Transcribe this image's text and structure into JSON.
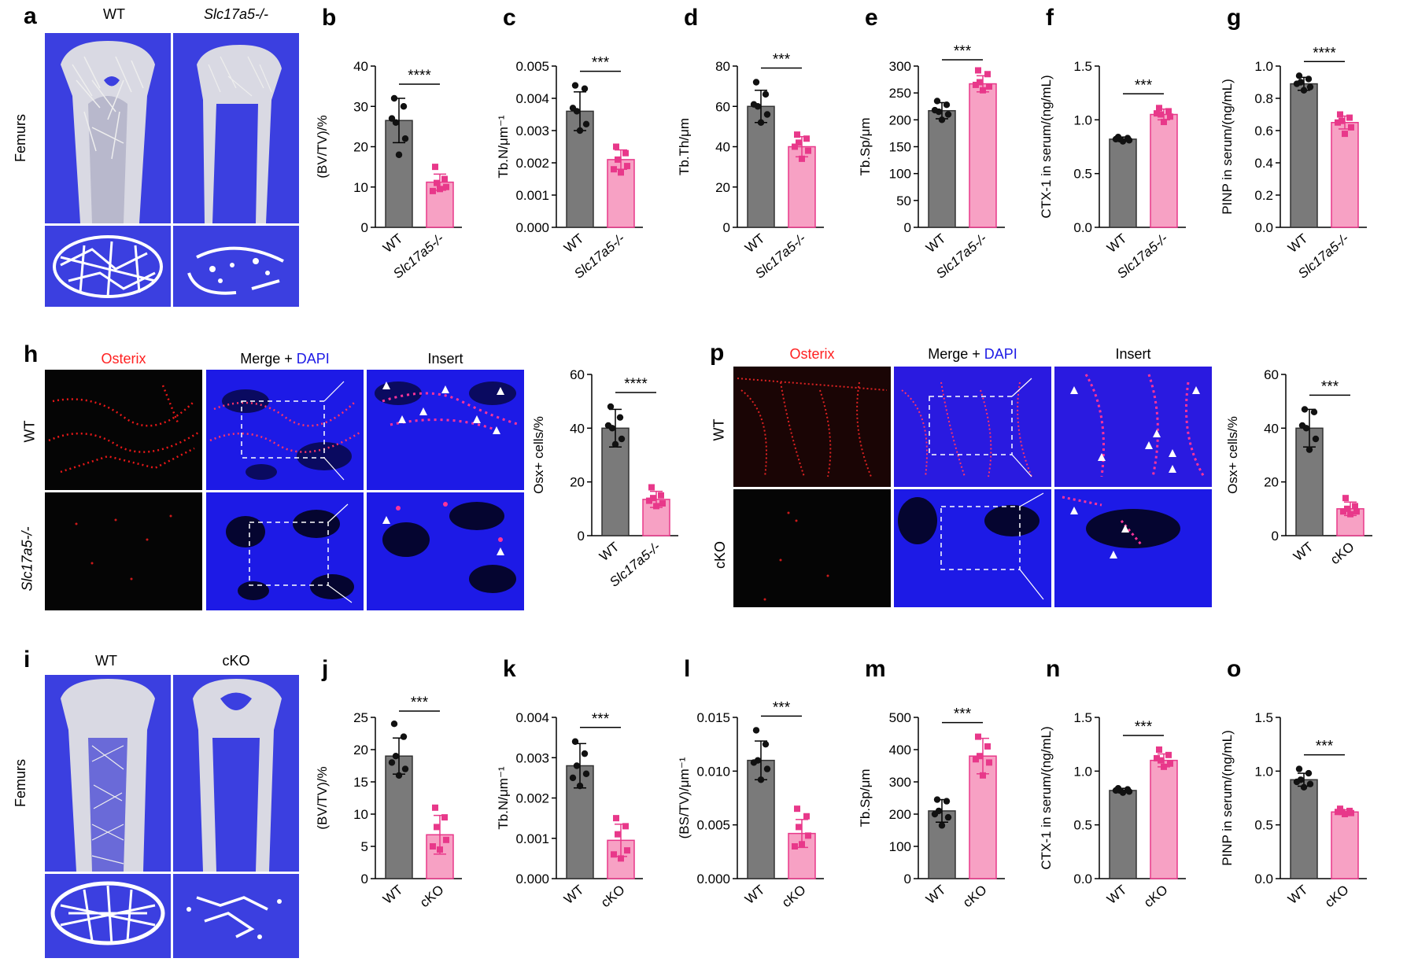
{
  "panels": {
    "a": {
      "letter": "a",
      "col_labels": [
        "WT",
        "Slc17a5-/-"
      ],
      "row_label": "Femurs"
    },
    "h": {
      "letter": "h",
      "col_labels": [
        "Osterix",
        "Merge + DAPI",
        "Insert"
      ],
      "row_labels": [
        "WT",
        "Slc17a5-/-"
      ],
      "merge_prefix": "Merge + ",
      "merge_dapi": "DAPI"
    },
    "p": {
      "letter": "p",
      "col_labels": [
        "Osterix",
        "Merge + DAPI",
        "Insert"
      ],
      "row_labels": [
        "WT",
        "cKO"
      ],
      "merge_prefix": "Merge + ",
      "merge_dapi": "DAPI"
    },
    "i": {
      "letter": "i",
      "col_labels": [
        "WT",
        "cKO"
      ],
      "row_label": "Femurs"
    }
  },
  "colors": {
    "wt_bar": "#7a7a7a",
    "ko_bar": "#f7a1c4",
    "ko_point": "#e8388a",
    "ct_background": "#3b3fe0",
    "dapi_blue": "#1d1ae6",
    "osterix_red": "#ff2020"
  },
  "chart_data": [
    {
      "id": "b",
      "letter": "b",
      "type": "bar",
      "categories": [
        "WT",
        "Slc17a5-/-"
      ],
      "ylabel": "(BV/TV)/%",
      "ylim": [
        0,
        40
      ],
      "yticks": [
        "0",
        "10",
        "20",
        "30",
        "40"
      ],
      "means": [
        26.5,
        11.2
      ],
      "sd": [
        5.5,
        2.0
      ],
      "points": [
        [
          32,
          30,
          26,
          22,
          18,
          27
        ],
        [
          15,
          12,
          11,
          10,
          9.5,
          9
        ]
      ],
      "sig": "****"
    },
    {
      "id": "c",
      "letter": "c",
      "type": "bar",
      "categories": [
        "WT",
        "Slc17a5-/-"
      ],
      "ylabel": "Tb.N/μm⁻¹",
      "ylim": [
        0,
        0.005
      ],
      "yticks": [
        "0.000",
        "0.001",
        "0.002",
        "0.003",
        "0.004",
        "0.005"
      ],
      "means": [
        0.0036,
        0.0021
      ],
      "sd": [
        0.0006,
        0.0003
      ],
      "points": [
        [
          0.0044,
          0.0043,
          0.0036,
          0.0032,
          0.003,
          0.0037
        ],
        [
          0.0025,
          0.0023,
          0.0021,
          0.0019,
          0.0017,
          0.0018
        ]
      ],
      "sig": "***"
    },
    {
      "id": "d",
      "letter": "d",
      "type": "bar",
      "categories": [
        "WT",
        "Slc17a5-/-"
      ],
      "ylabel": "Tb.Th/μm",
      "ylim": [
        0,
        80
      ],
      "yticks": [
        "0",
        "20",
        "40",
        "60",
        "80"
      ],
      "means": [
        60,
        40
      ],
      "sd": [
        8,
        5
      ],
      "points": [
        [
          72,
          66,
          60,
          56,
          52,
          61
        ],
        [
          46,
          44,
          42,
          38,
          34,
          40
        ]
      ],
      "sig": "***"
    },
    {
      "id": "e",
      "letter": "e",
      "type": "bar",
      "categories": [
        "WT",
        "Slc17a5-/-"
      ],
      "ylabel": "Tb.Sp/μm",
      "ylim": [
        0,
        300
      ],
      "yticks": [
        "0",
        "50",
        "100",
        "150",
        "200",
        "250",
        "300"
      ],
      "means": [
        217,
        267
      ],
      "sd": [
        15,
        15
      ],
      "points": [
        [
          235,
          228,
          215,
          210,
          200,
          218
        ],
        [
          292,
          285,
          270,
          262,
          255,
          265
        ]
      ],
      "sig": "***"
    },
    {
      "id": "f",
      "letter": "f",
      "type": "bar",
      "categories": [
        "WT",
        "Slc17a5-/-"
      ],
      "ylabel": "CTX-1 in serum/(ng/mL)",
      "ylim": [
        0,
        1.5
      ],
      "yticks": [
        "0.0",
        "0.5",
        "1.0",
        "1.5"
      ],
      "means": [
        0.82,
        1.05
      ],
      "sd": [
        0.02,
        0.05
      ],
      "points": [
        [
          0.84,
          0.83,
          0.82,
          0.81,
          0.8,
          0.82
        ],
        [
          1.11,
          1.08,
          1.05,
          1.03,
          0.98,
          1.06
        ]
      ],
      "sig": "***"
    },
    {
      "id": "g",
      "letter": "g",
      "type": "bar",
      "categories": [
        "WT",
        "Slc17a5-/-"
      ],
      "ylabel": "PINP in serum/(ng/mL)",
      "ylim": [
        0,
        1.0
      ],
      "yticks": [
        "0.0",
        "0.2",
        "0.4",
        "0.6",
        "0.8",
        "1.0"
      ],
      "means": [
        0.89,
        0.65
      ],
      "sd": [
        0.04,
        0.04
      ],
      "points": [
        [
          0.94,
          0.92,
          0.9,
          0.87,
          0.85,
          0.89
        ],
        [
          0.7,
          0.68,
          0.66,
          0.62,
          0.58,
          0.65
        ]
      ],
      "sig": "****"
    },
    {
      "id": "h_chart",
      "type": "bar",
      "categories": [
        "WT",
        "Slc17a5-/-"
      ],
      "ylabel": "Osx+ cells/%",
      "ylim": [
        0,
        60
      ],
      "yticks": [
        "0",
        "20",
        "40",
        "60"
      ],
      "means": [
        40,
        13.5
      ],
      "sd": [
        7,
        3
      ],
      "points": [
        [
          48,
          44,
          40,
          36,
          34,
          41
        ],
        [
          18,
          15,
          14,
          12,
          11,
          13
        ]
      ],
      "sig": "****"
    },
    {
      "id": "p_chart",
      "type": "bar",
      "categories": [
        "WT",
        "cKO"
      ],
      "ylabel": "Osx+ cells/%",
      "ylim": [
        0,
        60
      ],
      "yticks": [
        "0",
        "20",
        "40",
        "60"
      ],
      "means": [
        40,
        10
      ],
      "sd": [
        7,
        2.5
      ],
      "points": [
        [
          47,
          46,
          40,
          36,
          32,
          41
        ],
        [
          14,
          11,
          10,
          9,
          8,
          9
        ]
      ],
      "sig": "***"
    },
    {
      "id": "j",
      "letter": "j",
      "type": "bar",
      "categories": [
        "WT",
        "cKO"
      ],
      "ylabel": "(BV/TV)/%",
      "ylim": [
        0,
        25
      ],
      "yticks": [
        "0",
        "5",
        "10",
        "15",
        "20",
        "25"
      ],
      "means": [
        19,
        6.8
      ],
      "sd": [
        2.8,
        3
      ],
      "points": [
        [
          24,
          22,
          19,
          17,
          16,
          18
        ],
        [
          11,
          9.5,
          8,
          6,
          4.5,
          5
        ]
      ],
      "sig": "***"
    },
    {
      "id": "k",
      "letter": "k",
      "type": "bar",
      "categories": [
        "WT",
        "cKO"
      ],
      "ylabel": "Tb.N/μm⁻¹",
      "ylim": [
        0,
        0.004
      ],
      "yticks": [
        "0.000",
        "0.001",
        "0.002",
        "0.003",
        "0.004"
      ],
      "means": [
        0.0028,
        0.00095
      ],
      "sd": [
        0.00055,
        0.0004
      ],
      "points": [
        [
          0.0034,
          0.0031,
          0.0028,
          0.0026,
          0.0023,
          0.0025
        ],
        [
          0.0015,
          0.0013,
          0.0011,
          0.0007,
          0.0005,
          0.0006
        ]
      ],
      "sig": "***"
    },
    {
      "id": "l",
      "letter": "l",
      "type": "bar",
      "categories": [
        "WT",
        "cKO"
      ],
      "ylabel": "(BS/TV)/μm⁻¹",
      "ylim": [
        0,
        0.015
      ],
      "yticks": [
        "0.000",
        "0.005",
        "0.010",
        "0.015"
      ],
      "means": [
        0.011,
        0.0042
      ],
      "sd": [
        0.0018,
        0.0013
      ],
      "points": [
        [
          0.0138,
          0.0125,
          0.011,
          0.0102,
          0.0092,
          0.0108
        ],
        [
          0.0065,
          0.0058,
          0.0048,
          0.004,
          0.0032,
          0.003
        ]
      ],
      "sig": "***"
    },
    {
      "id": "m",
      "letter": "m",
      "type": "bar",
      "categories": [
        "WT",
        "cKO"
      ],
      "ylabel": "Tb.Sp/μm",
      "ylim": [
        0,
        500
      ],
      "yticks": [
        "0",
        "100",
        "200",
        "300",
        "400",
        "500"
      ],
      "means": [
        210,
        380
      ],
      "sd": [
        35,
        55
      ],
      "points": [
        [
          245,
          240,
          210,
          190,
          165,
          200
        ],
        [
          440,
          410,
          380,
          360,
          320,
          370
        ]
      ],
      "sig": "***"
    },
    {
      "id": "n",
      "letter": "n",
      "type": "bar",
      "categories": [
        "WT",
        "cKO"
      ],
      "ylabel": "CTX-1 in serum/(ng/mL)",
      "ylim": [
        0,
        1.5
      ],
      "yticks": [
        "0.0",
        "0.5",
        "1.0",
        "1.5"
      ],
      "means": [
        0.82,
        1.1
      ],
      "sd": [
        0.02,
        0.06
      ],
      "points": [
        [
          0.84,
          0.83,
          0.82,
          0.81,
          0.8,
          0.82
        ],
        [
          1.2,
          1.15,
          1.1,
          1.07,
          1.04,
          1.12
        ]
      ],
      "sig": "***"
    },
    {
      "id": "o",
      "letter": "o",
      "type": "bar",
      "categories": [
        "WT",
        "cKO"
      ],
      "ylabel": "PINP in serum/(ng/mL)",
      "ylim": [
        0,
        1.5
      ],
      "yticks": [
        "0.0",
        "0.5",
        "1.0",
        "1.5"
      ],
      "means": [
        0.92,
        0.62
      ],
      "sd": [
        0.06,
        0.02
      ],
      "points": [
        [
          1.02,
          0.98,
          0.92,
          0.88,
          0.85,
          0.9
        ],
        [
          0.65,
          0.63,
          0.62,
          0.61,
          0.6,
          0.62
        ]
      ],
      "sig": "***"
    }
  ]
}
